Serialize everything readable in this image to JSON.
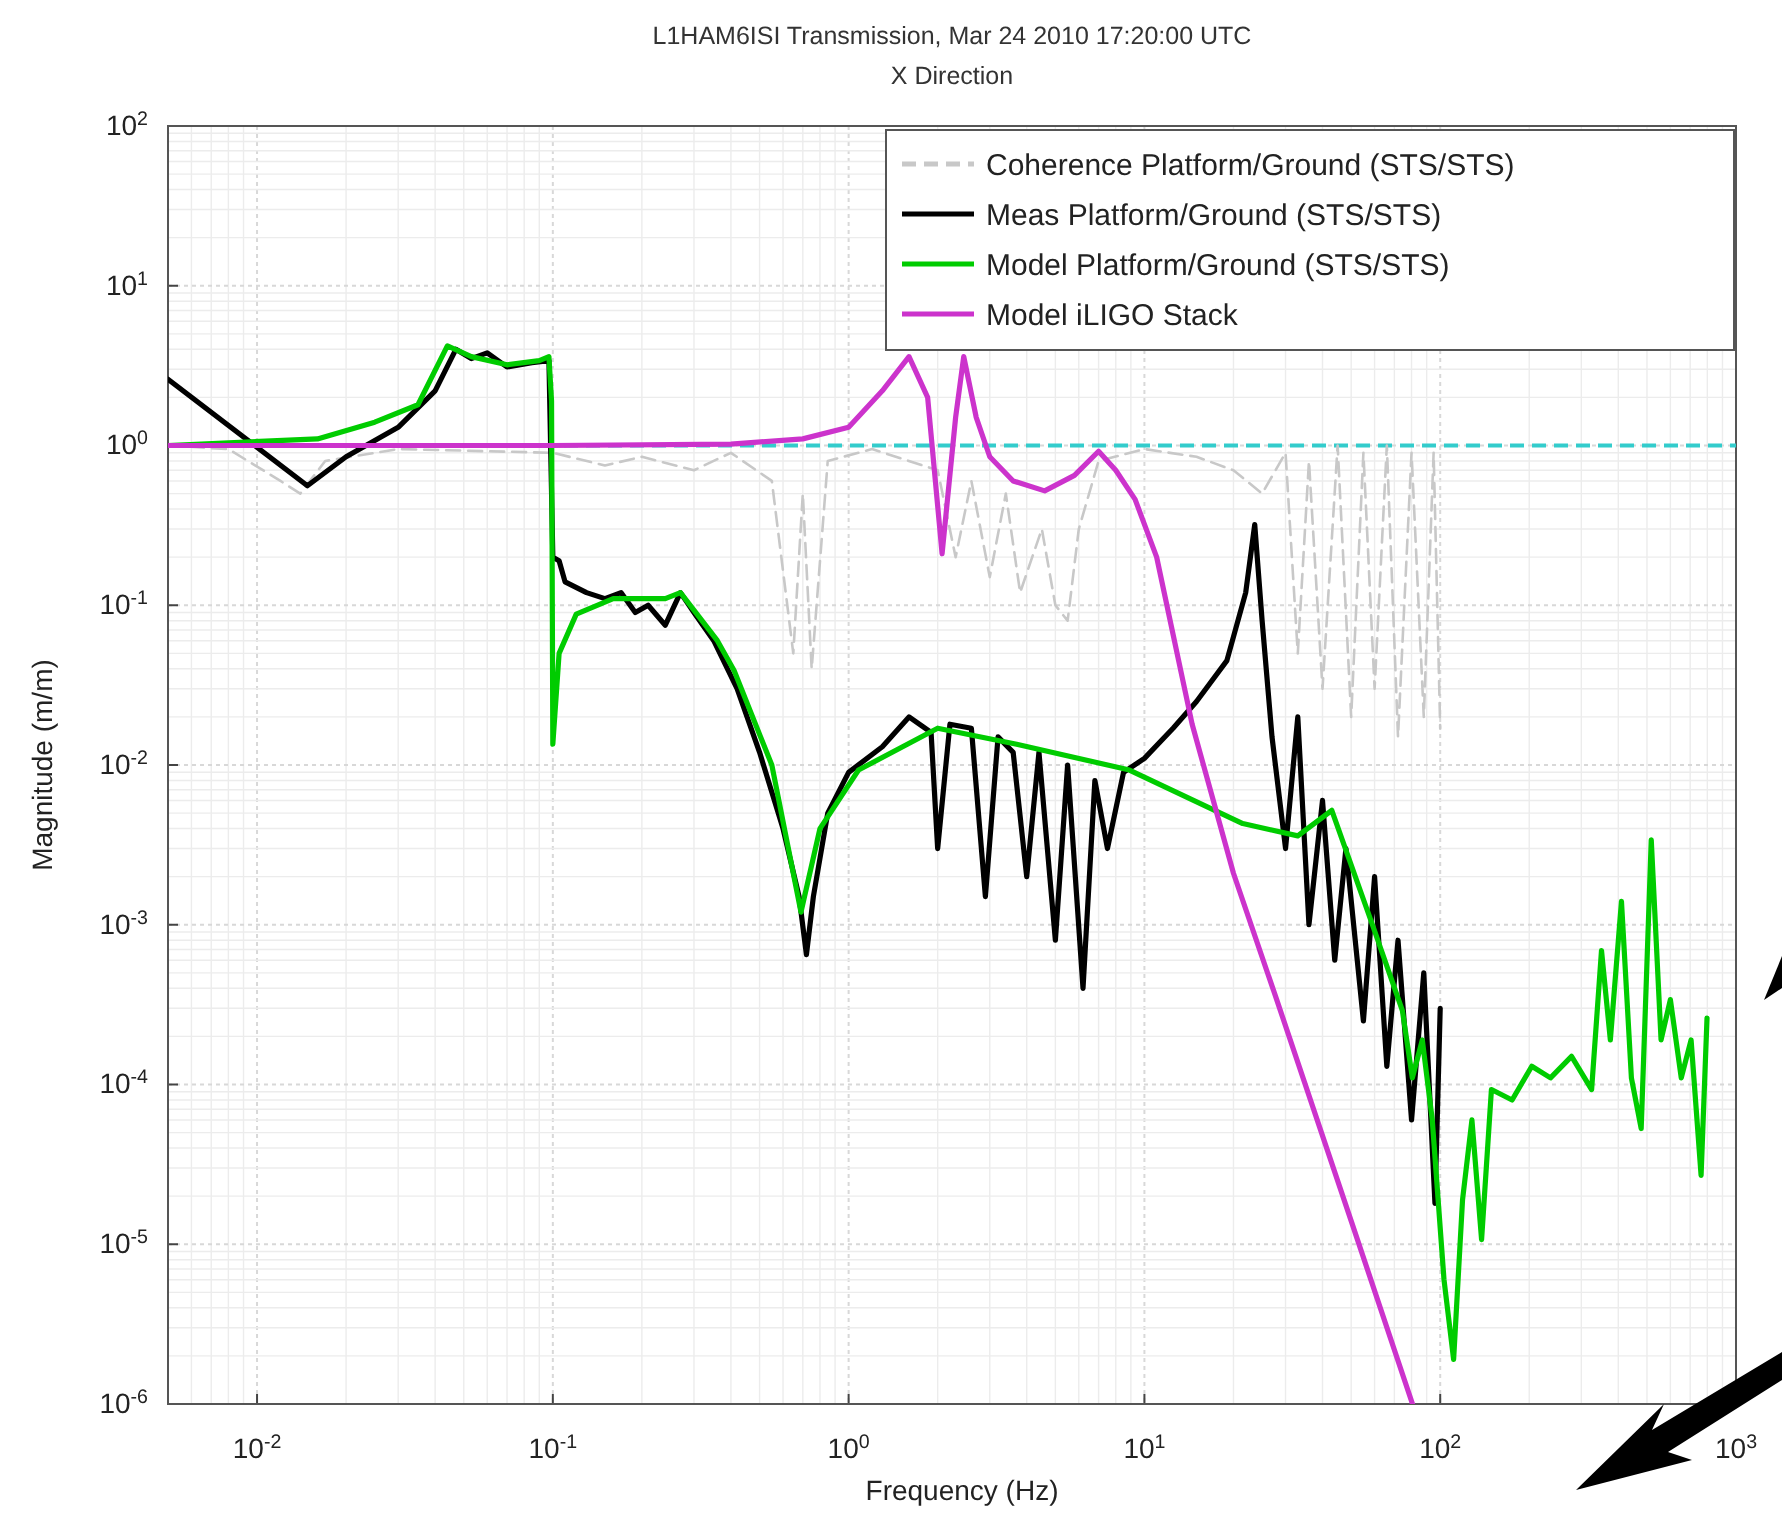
{
  "chart_data": {
    "type": "line",
    "title": "L1HAM6ISI Transmission, Mar 24 2010 17:20:00 UTC",
    "subtitle": "X Direction",
    "xlabel": "Frequency (Hz)",
    "ylabel": "Magnitude (m/m)",
    "log": "xy",
    "grid": true,
    "legend": "top right",
    "xlim": [
      0.005,
      1000
    ],
    "ylim": [
      1e-06,
      100
    ],
    "xticks": [
      {
        "value": 0.01,
        "label": "10$^{-2}$"
      },
      {
        "value": 0.1,
        "label": "10$^{-1}$"
      },
      {
        "value": 1,
        "label": "10$^{0}$"
      },
      {
        "value": 10,
        "label": "10$^{1}$"
      },
      {
        "value": 100,
        "label": "10$^{2}$"
      },
      {
        "value": 1000,
        "label": "10$^{3}$"
      }
    ],
    "yticks": [
      {
        "value": 1e-06,
        "label": "10$^{-6}$"
      },
      {
        "value": 1e-05,
        "label": "10$^{-5}$"
      },
      {
        "value": 0.0001,
        "label": "10$^{-4}$"
      },
      {
        "value": 0.001,
        "label": "10$^{-3}$"
      },
      {
        "value": 0.01,
        "label": "10$^{-2}$"
      },
      {
        "value": 0.1,
        "label": "10$^{-1}$"
      },
      {
        "value": 1,
        "label": "10$^{0}$"
      },
      {
        "value": 10,
        "label": "10$^{1}$"
      },
      {
        "value": 100,
        "label": "10$^{2}$"
      }
    ],
    "ref_lines": [
      {
        "axis": "y",
        "value": 1,
        "color": "#33cccc",
        "line_style": "dashed"
      }
    ],
    "series": [
      {
        "name": "Coherence Platform/Ground (STS/STS)",
        "color": "#c8c8c8",
        "line_style": "dashed",
        "x": [
          0.005,
          0.008,
          0.012,
          0.014,
          0.017,
          0.03,
          0.1,
          0.15,
          0.2,
          0.3,
          0.4,
          0.55,
          0.65,
          0.7,
          0.75,
          0.85,
          1.2,
          2.0,
          2.3,
          2.6,
          3.0,
          3.4,
          3.8,
          4.5,
          5.0,
          5.5,
          6.0,
          7,
          10,
          15,
          20,
          25,
          30,
          33,
          36,
          40,
          45,
          50,
          55,
          60,
          66,
          72,
          80,
          88,
          95,
          100
        ],
        "values": [
          1,
          0.95,
          0.6,
          0.5,
          0.8,
          0.95,
          0.9,
          0.75,
          0.85,
          0.7,
          0.9,
          0.6,
          0.05,
          0.5,
          0.04,
          0.8,
          0.95,
          0.7,
          0.2,
          0.6,
          0.15,
          0.5,
          0.12,
          0.3,
          0.1,
          0.08,
          0.3,
          0.8,
          0.95,
          0.85,
          0.7,
          0.5,
          0.9,
          0.05,
          0.8,
          0.03,
          1.0,
          0.02,
          0.9,
          0.03,
          1.0,
          0.015,
          0.9,
          0.02,
          0.9,
          0.017
        ]
      },
      {
        "name": "Meas Platform/Ground (STS/STS)",
        "color": "#000000",
        "line_style": "solid",
        "x": [
          0.005,
          0.0148,
          0.02,
          0.03,
          0.04,
          0.047,
          0.053,
          0.06,
          0.07,
          0.085,
          0.097,
          0.1,
          0.105,
          0.11,
          0.13,
          0.15,
          0.17,
          0.19,
          0.21,
          0.24,
          0.27,
          0.3,
          0.35,
          0.42,
          0.5,
          0.6,
          0.68,
          0.72,
          0.76,
          0.85,
          1.0,
          1.3,
          1.6,
          1.9,
          2.0,
          2.2,
          2.6,
          2.9,
          3.2,
          3.6,
          4.0,
          4.4,
          5.0,
          5.5,
          6.2,
          6.8,
          7.5,
          8.5,
          10,
          12.5,
          15,
          19,
          22,
          23.6,
          25,
          27,
          30,
          33,
          36,
          40,
          44,
          48,
          55,
          60,
          66,
          72,
          80,
          88,
          96,
          100
        ],
        "values": [
          2.6,
          0.56,
          0.85,
          1.3,
          2.2,
          4.0,
          3.5,
          3.8,
          3.1,
          3.3,
          3.4,
          0.2,
          0.19,
          0.14,
          0.12,
          0.11,
          0.12,
          0.09,
          0.1,
          0.075,
          0.12,
          0.09,
          0.06,
          0.03,
          0.012,
          0.004,
          0.0015,
          0.00065,
          0.0015,
          0.005,
          0.009,
          0.013,
          0.02,
          0.016,
          0.003,
          0.018,
          0.017,
          0.0015,
          0.015,
          0.012,
          0.002,
          0.012,
          0.0008,
          0.01,
          0.0004,
          0.008,
          0.003,
          0.009,
          0.011,
          0.017,
          0.025,
          0.045,
          0.12,
          0.32,
          0.08,
          0.015,
          0.003,
          0.02,
          0.001,
          0.006,
          0.0006,
          0.003,
          0.00025,
          0.002,
          0.00013,
          0.0008,
          6e-05,
          0.0005,
          1.8e-05,
          0.0003
        ]
      },
      {
        "name": "Model Platform/Ground (STS/STS)",
        "color": "#00cc00",
        "line_style": "solid",
        "x": [
          0.005,
          0.016,
          0.025,
          0.035,
          0.044,
          0.053,
          0.07,
          0.09,
          0.097,
          0.099,
          0.1,
          0.105,
          0.12,
          0.16,
          0.24,
          0.27,
          0.36,
          0.41,
          0.55,
          0.69,
          0.8,
          1.08,
          2.0,
          3.7,
          8.9,
          21.5,
          33,
          43,
          59,
          74.5,
          80.5,
          87,
          94,
          103,
          111,
          119,
          128,
          138,
          149,
          175,
          204,
          236,
          278,
          325,
          351,
          376,
          410,
          443,
          478,
          517,
          558,
          600,
          653,
          705,
          762,
          798
        ],
        "values": [
          1.0,
          1.1,
          1.4,
          1.8,
          4.2,
          3.6,
          3.2,
          3.4,
          3.6,
          1.9,
          0.0135,
          0.05,
          0.088,
          0.11,
          0.11,
          0.12,
          0.06,
          0.039,
          0.01,
          0.0012,
          0.004,
          0.0093,
          0.017,
          0.0135,
          0.0093,
          0.0043,
          0.0036,
          0.0052,
          0.001,
          0.00029,
          0.00011,
          0.00019,
          6e-05,
          6e-06,
          1.9e-06,
          1.9e-05,
          6e-05,
          1.07e-05,
          9.3e-05,
          8e-05,
          0.00013,
          0.00011,
          0.00015,
          9.3e-05,
          0.00069,
          0.00019,
          0.0014,
          0.00011,
          5.3e-05,
          0.0034,
          0.00019,
          0.00034,
          0.00011,
          0.00019,
          2.7e-05,
          0.00026
        ]
      },
      {
        "name": "Model iLIGO Stack",
        "color": "#cc33cc",
        "line_style": "solid",
        "x": [
          0.005,
          0.1,
          0.4,
          0.7,
          1.0,
          1.3,
          1.6,
          1.85,
          2.07,
          2.3,
          2.45,
          2.7,
          3.0,
          3.6,
          4.6,
          5.8,
          7.0,
          8.0,
          9.3,
          11,
          14.5,
          20,
          28,
          50,
          80.6
        ],
        "values": [
          1,
          1,
          1.02,
          1.1,
          1.3,
          2.2,
          3.6,
          2,
          0.21,
          1.5,
          3.6,
          1.5,
          0.85,
          0.6,
          0.52,
          0.65,
          0.92,
          0.7,
          0.46,
          0.2,
          0.018,
          0.0021,
          0.00034,
          1.4e-05,
          1e-06
        ]
      }
    ]
  }
}
